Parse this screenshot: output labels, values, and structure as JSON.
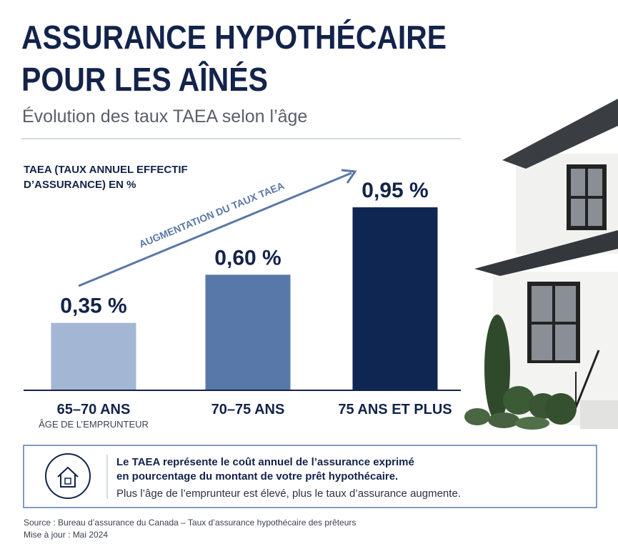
{
  "chart_data": {
    "type": "bar",
    "title": [
      "ASSURANCE HYPOTHÉCAIRE",
      "POUR LES AÎNÉS"
    ],
    "subtitle": "Évolution des taux TAEA selon l’âge",
    "y_label": [
      "TAEA (TAUX ANNUEL EFFECTIF",
      "D’ASSURANCE) EN %"
    ],
    "x_label": "ÂGE DE L’EMPRUNTEUR",
    "annotation": "AUGMENTATION DU TAUX TAEA",
    "categories": [
      "65–70 ANS",
      "70–75 ANS",
      "75 ANS ET PLUS"
    ],
    "values": [
      0.35,
      0.6,
      0.95
    ],
    "value_labels": [
      "0,35 %",
      "0,60 %",
      "0,95 %"
    ],
    "colors": [
      "#a3b6d3",
      "#5878aa",
      "#0f2652"
    ],
    "info": [
      "Le TAEA représente le coût annuel de l’assurance exprimé",
      "en pourcentage du montant de votre prêt hypothécaire.",
      "Plus l’âge de l’emprunteur est élevé, plus le taux d’assurance augmente."
    ],
    "source": "Source :  Bureau d’assurance du Canada – Taux d’assurance hypothécaire des prêteurs",
    "updated": "Mise à jour :  Mai 2024"
  }
}
